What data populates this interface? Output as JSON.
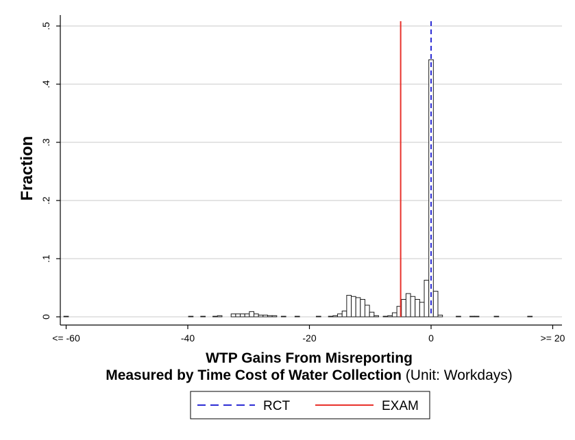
{
  "chart_data": {
    "type": "bar",
    "ylabel": "Fraction",
    "xlabel_line1": "WTP Gains From Misreporting",
    "xlabel_line2_bold": "Measured by Time Cost of Water Collection",
    "xlabel_line2_unit": "(Unit: Workdays)",
    "xlim": [
      -61,
      20
    ],
    "ylim": [
      0,
      0.5
    ],
    "yticks": [
      {
        "value": 0,
        "label": "0"
      },
      {
        "value": 0.1,
        "label": ".1"
      },
      {
        "value": 0.2,
        "label": ".2"
      },
      {
        "value": 0.3,
        "label": ".3"
      },
      {
        "value": 0.4,
        "label": ".4"
      },
      {
        "value": 0.5,
        "label": ".5"
      }
    ],
    "xticks": [
      {
        "value": -60,
        "label": "<= -60"
      },
      {
        "value": -40,
        "label": "-40"
      },
      {
        "value": -20,
        "label": "-20"
      },
      {
        "value": 0,
        "label": "0"
      },
      {
        "value": 20,
        "label": ">= 20"
      }
    ],
    "grid": true,
    "bin_width": 0.75,
    "bins": [
      {
        "x": -60.0,
        "y": 0.001
      },
      {
        "x": -39.5,
        "y": 0.001
      },
      {
        "x": -37.5,
        "y": 0.001
      },
      {
        "x": -35.5,
        "y": 0.001
      },
      {
        "x": -34.75,
        "y": 0.002
      },
      {
        "x": -32.5,
        "y": 0.005
      },
      {
        "x": -31.75,
        "y": 0.005
      },
      {
        "x": -31.0,
        "y": 0.005
      },
      {
        "x": -30.25,
        "y": 0.005
      },
      {
        "x": -29.5,
        "y": 0.009
      },
      {
        "x": -28.75,
        "y": 0.005
      },
      {
        "x": -28.0,
        "y": 0.003
      },
      {
        "x": -27.25,
        "y": 0.003
      },
      {
        "x": -26.5,
        "y": 0.002
      },
      {
        "x": -25.75,
        "y": 0.002
      },
      {
        "x": -24.25,
        "y": 0.001
      },
      {
        "x": -22.0,
        "y": 0.001
      },
      {
        "x": -18.5,
        "y": 0.001
      },
      {
        "x": -16.5,
        "y": 0.001
      },
      {
        "x": -15.75,
        "y": 0.002
      },
      {
        "x": -15.0,
        "y": 0.005
      },
      {
        "x": -14.25,
        "y": 0.01
      },
      {
        "x": -13.5,
        "y": 0.037
      },
      {
        "x": -12.75,
        "y": 0.035
      },
      {
        "x": -12.0,
        "y": 0.033
      },
      {
        "x": -11.25,
        "y": 0.03
      },
      {
        "x": -10.5,
        "y": 0.02
      },
      {
        "x": -9.75,
        "y": 0.008
      },
      {
        "x": -9.0,
        "y": 0.002
      },
      {
        "x": -7.5,
        "y": 0.001
      },
      {
        "x": -6.75,
        "y": 0.002
      },
      {
        "x": -6.0,
        "y": 0.007
      },
      {
        "x": -5.25,
        "y": 0.018
      },
      {
        "x": -4.5,
        "y": 0.03
      },
      {
        "x": -3.75,
        "y": 0.04
      },
      {
        "x": -3.0,
        "y": 0.035
      },
      {
        "x": -2.25,
        "y": 0.03
      },
      {
        "x": -1.5,
        "y": 0.025
      },
      {
        "x": -0.75,
        "y": 0.063
      },
      {
        "x": 0.0,
        "y": 0.442
      },
      {
        "x": 0.75,
        "y": 0.044
      },
      {
        "x": 1.5,
        "y": 0.003
      },
      {
        "x": 4.5,
        "y": 0.001
      },
      {
        "x": 6.75,
        "y": 0.001
      },
      {
        "x": 7.5,
        "y": 0.001
      },
      {
        "x": 10.75,
        "y": 0.001
      },
      {
        "x": 16.25,
        "y": 0.001
      }
    ],
    "vlines": [
      {
        "name": "RCT",
        "x": 0.0,
        "color": "#2b2bd4",
        "style": "dashed"
      },
      {
        "name": "EXAM",
        "x": -5.0,
        "color": "#e8302a",
        "style": "solid"
      }
    ],
    "legend": {
      "placement": "bottom-center",
      "items": [
        {
          "label": "RCT",
          "color": "#2b2bd4",
          "style": "dashed"
        },
        {
          "label": "EXAM",
          "color": "#e8302a",
          "style": "solid"
        }
      ]
    }
  }
}
